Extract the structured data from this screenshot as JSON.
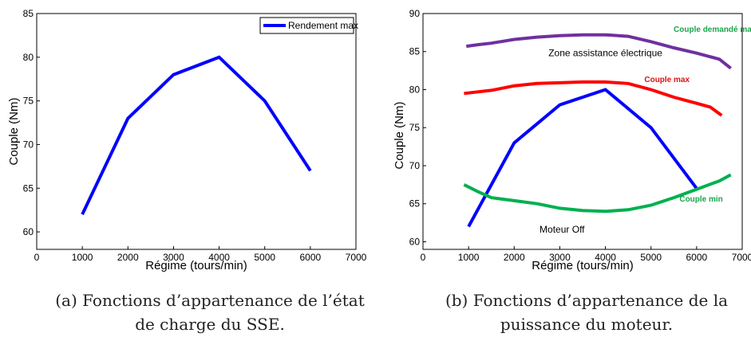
{
  "chart_data": [
    {
      "type": "line",
      "xlabel": "Régime (tours/min)",
      "ylabel": "Couple (Nm)",
      "xlim": [
        0,
        7000
      ],
      "ylim": [
        58,
        85
      ],
      "xticks": [
        0,
        1000,
        2000,
        3000,
        4000,
        5000,
        6000,
        7000
      ],
      "yticks": [
        60,
        65,
        70,
        75,
        80,
        85
      ],
      "legend": "top-right",
      "grid": false,
      "series": [
        {
          "name": "Rendement max",
          "color": "#0000ff",
          "x": [
            1000,
            2000,
            3000,
            4000,
            5000,
            6000
          ],
          "y": [
            62,
            73,
            78,
            80,
            75,
            67
          ]
        }
      ],
      "caption": "(a) Fonctions d’appartenance de l’état de charge du SSE."
    },
    {
      "type": "line",
      "xlabel": "Régime (tours/min)",
      "ylabel": "Couple (Nm)",
      "xlim": [
        0,
        7000
      ],
      "ylim": [
        59,
        90
      ],
      "xticks": [
        0,
        1000,
        2000,
        3000,
        4000,
        5000,
        6000,
        7000
      ],
      "yticks": [
        60,
        65,
        70,
        75,
        80,
        85,
        90
      ],
      "grid": false,
      "series": [
        {
          "color": "#0000ff",
          "x": [
            1000,
            2000,
            3000,
            4000,
            5000,
            6000
          ],
          "y": [
            62,
            73,
            78,
            80,
            75,
            67
          ]
        },
        {
          "color": "#7030a0",
          "x": [
            950,
            1200,
            1500,
            2000,
            2500,
            3000,
            3500,
            4000,
            4500,
            5000,
            5500,
            6000,
            6500,
            6750
          ],
          "y": [
            85.7,
            85.9,
            86.1,
            86.6,
            86.9,
            87.1,
            87.2,
            87.2,
            87,
            86.3,
            85.5,
            84.8,
            84.0,
            82.8
          ]
        },
        {
          "color": "#ff0000",
          "x": [
            900,
            1200,
            1500,
            2000,
            2500,
            3000,
            3500,
            4000,
            4500,
            5000,
            5500,
            6000,
            6300,
            6550
          ],
          "y": [
            79.5,
            79.7,
            79.9,
            80.5,
            80.8,
            80.9,
            81.0,
            81.0,
            80.8,
            80.0,
            79.0,
            78.2,
            77.7,
            76.6
          ]
        },
        {
          "color": "#00b050",
          "x": [
            900,
            1200,
            1500,
            2000,
            2500,
            3000,
            3500,
            4000,
            4500,
            5000,
            5500,
            6000,
            6500,
            6750
          ],
          "y": [
            67.5,
            66.6,
            65.8,
            65.4,
            65.0,
            64.4,
            64.1,
            64.0,
            64.2,
            64.8,
            65.8,
            66.9,
            68.0,
            68.8
          ]
        }
      ],
      "annotations": [
        {
          "text": "Zone assistance électrique",
          "x": 4000,
          "y": 84.4,
          "style": "plain"
        },
        {
          "text": "Couple demandé max",
          "x": 6400,
          "y": 87.6,
          "style": "green"
        },
        {
          "text": "Couple max",
          "x": 5350,
          "y": 81.0,
          "style": "red"
        },
        {
          "text": "Couple min",
          "x": 6100,
          "y": 65.3,
          "style": "green"
        },
        {
          "text": "Moteur Off",
          "x": 3050,
          "y": 61.2,
          "style": "plain"
        }
      ],
      "caption": "(b) Fonctions d’appartenance de la puissance du moteur."
    }
  ]
}
